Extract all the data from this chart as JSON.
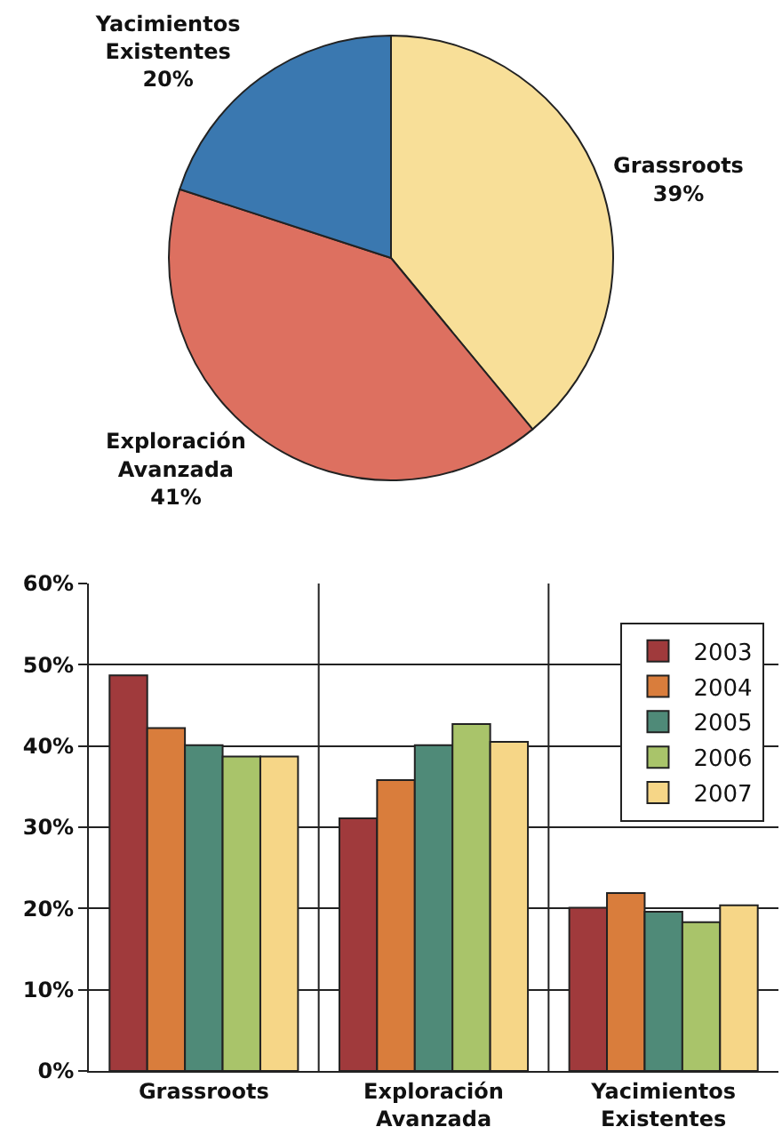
{
  "chart_data": [
    {
      "type": "pie",
      "categories": [
        "Grassroots",
        "Exploración Avanzada",
        "Yacimientos Existentes"
      ],
      "values": [
        39,
        41,
        20
      ],
      "colors": [
        "#f8df98",
        "#dd7060",
        "#3a78b0"
      ],
      "value_labels": [
        "39%",
        "41%",
        "20%"
      ]
    },
    {
      "type": "bar",
      "categories": [
        "Grassroots",
        "Exploración Avanzada",
        "Yacimientos Existentes"
      ],
      "ylim": [
        0,
        60
      ],
      "yticks": [
        {
          "value": 0,
          "label": "0%"
        },
        {
          "value": 10,
          "label": "10%"
        },
        {
          "value": 20,
          "label": "20%"
        },
        {
          "value": 30,
          "label": "30%"
        },
        {
          "value": 40,
          "label": "40%"
        },
        {
          "value": 50,
          "label": "50%"
        },
        {
          "value": 60,
          "label": "60%"
        }
      ],
      "grid": true,
      "legend": "top right",
      "series": [
        {
          "name": "2003",
          "color": "#a03a3c",
          "values": [
            48.7,
            31.1,
            20.1
          ]
        },
        {
          "name": "2004",
          "color": "#d97d3c",
          "values": [
            42.2,
            35.8,
            21.9
          ]
        },
        {
          "name": "2005",
          "color": "#4f8a78",
          "values": [
            40.1,
            40.1,
            19.6
          ]
        },
        {
          "name": "2006",
          "color": "#a9c46a",
          "values": [
            38.7,
            42.7,
            18.3
          ]
        },
        {
          "name": "2007",
          "color": "#f6d687",
          "values": [
            38.7,
            40.5,
            20.4
          ]
        }
      ]
    }
  ]
}
